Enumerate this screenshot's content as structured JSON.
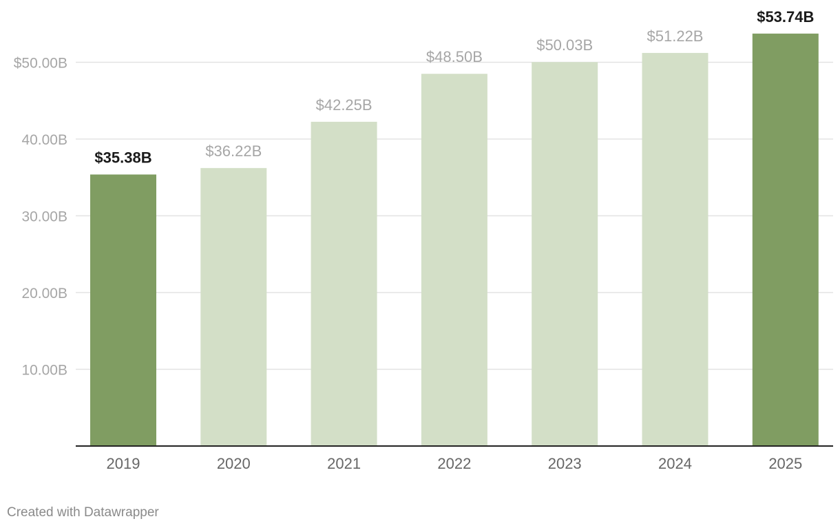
{
  "chart_data": {
    "type": "bar",
    "categories": [
      "2019",
      "2020",
      "2021",
      "2022",
      "2023",
      "2024",
      "2025"
    ],
    "values": [
      35.38,
      36.22,
      42.25,
      48.5,
      50.03,
      51.22,
      53.74
    ],
    "value_labels": [
      "$35.38B",
      "$36.22B",
      "$42.25B",
      "$48.50B",
      "$50.03B",
      "$51.22B",
      "$53.74B"
    ],
    "highlighted": [
      true,
      false,
      false,
      false,
      false,
      false,
      true
    ],
    "yticks": [
      {
        "value": 10,
        "label": "10.00B"
      },
      {
        "value": 20,
        "label": "20.00B"
      },
      {
        "value": 30,
        "label": "30.00B"
      },
      {
        "value": 40,
        "label": "40.00B"
      },
      {
        "value": 50,
        "label": "$50.00B"
      }
    ],
    "ylim": [
      0,
      50
    ],
    "grid": true,
    "colors": {
      "highlight": "#809d62",
      "normal": "#d3dfc7",
      "grid": "#e3e3e3",
      "baseline": "#222222"
    }
  },
  "footer": {
    "credit": "Created with Datawrapper"
  }
}
